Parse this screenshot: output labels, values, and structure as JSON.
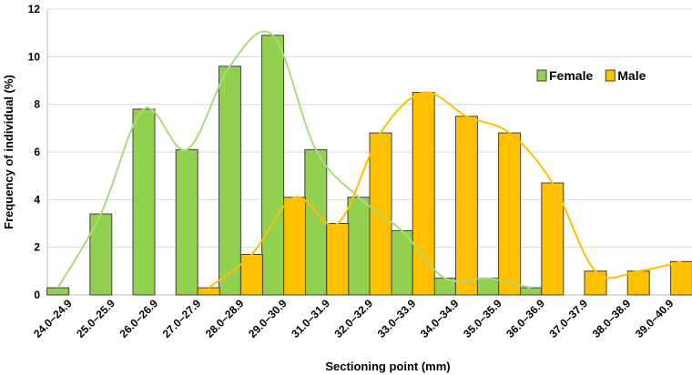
{
  "chart_data": {
    "type": "bar",
    "title": "",
    "xlabel": "Sectioning point (mm)",
    "ylabel": "Frequency of individual (%)",
    "ylim": [
      0,
      12
    ],
    "yticks": [
      0,
      2,
      4,
      6,
      8,
      10,
      12
    ],
    "grid": true,
    "legend_position": "top-right",
    "categories": [
      "24.0–24.9",
      "25.0–25.9",
      "26.0–26.9",
      "27.0–27.9",
      "28.0–28.9",
      "29.0–30.9",
      "31.0–31.9",
      "32.0–32.9",
      "33.0–33.9",
      "34.0–34.9",
      "35.0–35.9",
      "36.0–36.9",
      "37.0–37.9",
      "38.0–38.9",
      "39.0–40.9"
    ],
    "series": [
      {
        "name": "Female",
        "color": "#92d050",
        "line_color": "#a9dc7a",
        "values": [
          0.3,
          3.4,
          7.8,
          6.1,
          9.6,
          10.9,
          6.1,
          4.1,
          2.7,
          0.7,
          0.7,
          0.3,
          0,
          0,
          0
        ],
        "curve_range": [
          0,
          11
        ]
      },
      {
        "name": "Male",
        "color": "#ffc000",
        "line_color": "#ffc000",
        "values": [
          0,
          0,
          0,
          0.3,
          1.7,
          4.1,
          3.0,
          6.8,
          8.5,
          7.5,
          6.8,
          4.7,
          1.0,
          1.0,
          1.4
        ],
        "curve_range": [
          3,
          14
        ]
      }
    ]
  }
}
